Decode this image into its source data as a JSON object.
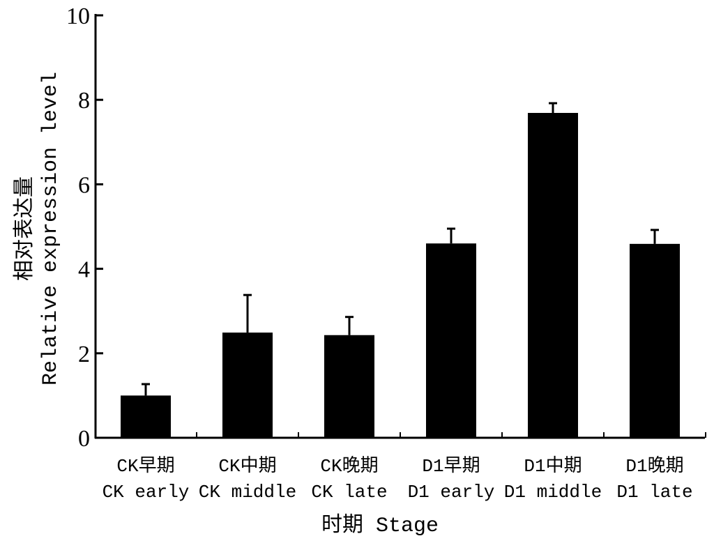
{
  "chart_data": {
    "type": "bar",
    "title": "",
    "categories": [
      {
        "zh": "CK早期",
        "en": "CK early"
      },
      {
        "zh": "CK中期",
        "en": "CK middle"
      },
      {
        "zh": "CK晚期",
        "en": "CK late"
      },
      {
        "zh": "D1早期",
        "en": "D1 early"
      },
      {
        "zh": "D1中期",
        "en": "D1 middle"
      },
      {
        "zh": "D1晚期",
        "en": "D1 late"
      }
    ],
    "values": [
      1.0,
      2.49,
      2.43,
      4.6,
      7.69,
      4.59
    ],
    "errors": [
      0.27,
      0.89,
      0.43,
      0.35,
      0.23,
      0.33
    ],
    "xlabel": "时期 Stage",
    "ylabel_zh": "相对表达量",
    "ylabel_en": "Relative expression level",
    "ylim": [
      0,
      10
    ],
    "yticks": [
      "0",
      "2",
      "4",
      "6",
      "8",
      "10"
    ],
    "ytick_values": [
      0,
      2,
      4,
      6,
      8,
      10
    ],
    "grid": false,
    "bar_color": "#000000"
  }
}
